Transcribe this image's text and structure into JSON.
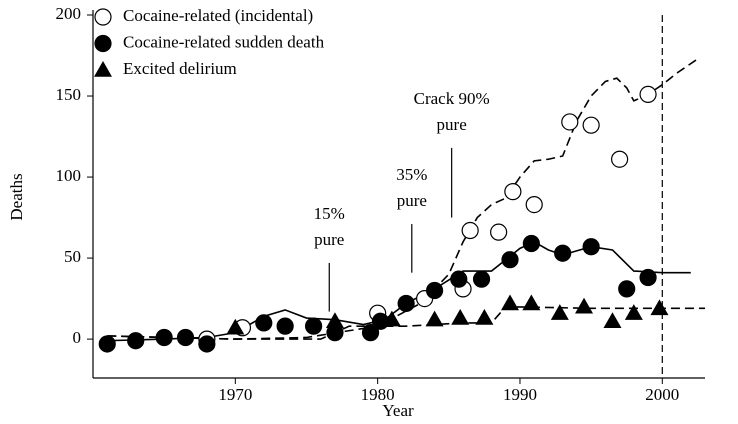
{
  "chart_data": {
    "type": "scatter",
    "x_label": "Year",
    "y_label": "Deaths",
    "xlim": [
      1960,
      2003
    ],
    "ylim": [
      -24,
      200
    ],
    "xticks": [
      1970,
      1980,
      1990,
      2000
    ],
    "yticks": [
      0,
      50,
      100,
      150,
      200
    ],
    "reference_x": 2000,
    "legend": "upper left",
    "series": [
      {
        "name": "Cocaine-related (incidental)",
        "marker": "open-circle",
        "color": "#000000",
        "trend_style": "dashed",
        "x": [
          1968,
          1970.5,
          1980,
          1983.3,
          1986,
          1986.5,
          1988.5,
          1989.5,
          1991,
          1993.5,
          1995,
          1997,
          1999
        ],
        "values": [
          0,
          7,
          16,
          25,
          31,
          67,
          66,
          91,
          83,
          134,
          132,
          111,
          151
        ],
        "trend_x": [
          1961,
          1965,
          1970,
          1975,
          1980,
          1983,
          1985,
          1986,
          1987,
          1988,
          1989,
          1990,
          1991,
          1992,
          1993,
          1994,
          1995,
          1996,
          1996.8,
          1997.5,
          1998,
          1999,
          2000,
          2001,
          2002.5
        ],
        "trend_y": [
          2,
          1,
          0,
          1,
          8,
          22,
          40,
          60,
          75,
          83,
          87,
          100,
          110,
          111,
          113,
          135,
          150,
          159,
          161,
          155,
          147,
          151,
          157,
          164,
          173
        ]
      },
      {
        "name": "Cocaine-related sudden death",
        "marker": "filled-circle",
        "color": "#000000",
        "trend_style": "solid",
        "x": [
          1961,
          1963,
          1965,
          1966.5,
          1968,
          1972,
          1973.5,
          1975.5,
          1977,
          1979.5,
          1980.2,
          1982,
          1984,
          1985.7,
          1987.3,
          1989.3,
          1990.8,
          1993,
          1995,
          1997.5,
          1999
        ],
        "values": [
          -3,
          -1,
          1,
          1,
          -3,
          10,
          8,
          8,
          4,
          4,
          11,
          22,
          30,
          37,
          37,
          49,
          59,
          53,
          57,
          31,
          38
        ],
        "trend_x": [
          1961,
          1965,
          1968,
          1970,
          1972,
          1973.5,
          1975,
          1977,
          1979,
          1980.5,
          1982,
          1984,
          1986,
          1988,
          1990,
          1991,
          1992,
          1993,
          1995,
          1996.5,
          1998,
          2000,
          2002
        ],
        "trend_y": [
          -1,
          0,
          1,
          4,
          14,
          18,
          13,
          12,
          9,
          12,
          22,
          31,
          42,
          42,
          56,
          60,
          55,
          52,
          57,
          55,
          42,
          41,
          41
        ]
      },
      {
        "name": "Excited delirium",
        "marker": "triangle",
        "color": "#000000",
        "trend_style": "dashed",
        "x": [
          1970,
          1977,
          1981,
          1984,
          1985.8,
          1987.5,
          1989.3,
          1990.8,
          1992.8,
          1994.5,
          1996.5,
          1998,
          1999.8
        ],
        "values": [
          7,
          11,
          12,
          12,
          13,
          13,
          22,
          22,
          16,
          20,
          11,
          16,
          19
        ],
        "trend_x": [
          1961,
          1970,
          1976,
          1978,
          1982,
          1986,
          1988,
          1989,
          1995,
          2003
        ],
        "trend_y": [
          2,
          0,
          0,
          8,
          8,
          10,
          10,
          20,
          19,
          19
        ]
      }
    ],
    "annotations": [
      {
        "lines": [
          "15%",
          "pure"
        ],
        "x": 1976.6,
        "line_y": [
          17,
          47
        ]
      },
      {
        "lines": [
          "35%",
          "pure"
        ],
        "x": 1982.4,
        "line_y": [
          41,
          71
        ]
      },
      {
        "lines": [
          "Crack 90%",
          "pure"
        ],
        "x": 1985.2,
        "line_y": [
          75,
          118
        ]
      }
    ]
  }
}
